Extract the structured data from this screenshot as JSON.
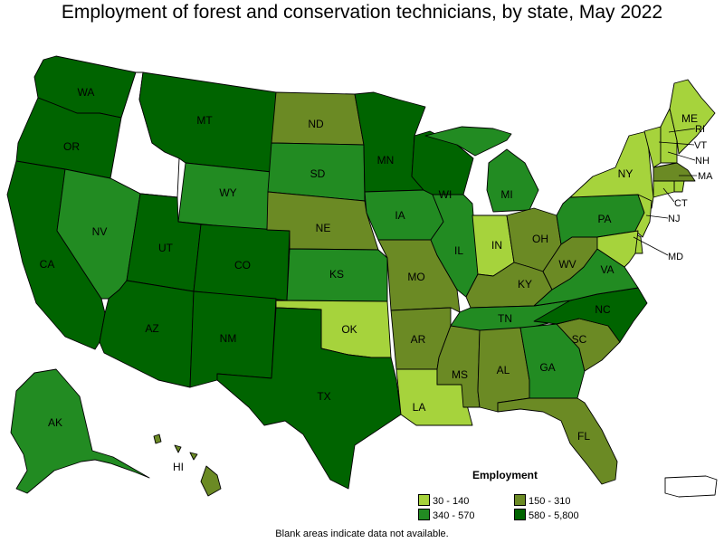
{
  "title": "Employment of forest and conservation technicians, by state, May 2022",
  "footnote": "Blank areas indicate data not available.",
  "legend": {
    "title": "Employment",
    "items": [
      {
        "label": "30 - 140",
        "color": "#a6d33c"
      },
      {
        "label": "150 - 310",
        "color": "#6b8a24"
      },
      {
        "label": "340 - 570",
        "color": "#228b22"
      },
      {
        "label": "580 - 5,800",
        "color": "#006400"
      }
    ]
  },
  "colors": {
    "c1": "#a6d33c",
    "c2": "#6b8a24",
    "c3": "#228b22",
    "c4": "#006400",
    "na": "#ffffff"
  },
  "states": {
    "WA": {
      "label": "WA",
      "bin": "c4"
    },
    "OR": {
      "label": "OR",
      "bin": "c4"
    },
    "CA": {
      "label": "CA",
      "bin": "c4"
    },
    "ID": {
      "label": "",
      "bin": "na"
    },
    "NV": {
      "label": "NV",
      "bin": "c3"
    },
    "MT": {
      "label": "MT",
      "bin": "c4"
    },
    "WY": {
      "label": "WY",
      "bin": "c3"
    },
    "UT": {
      "label": "UT",
      "bin": "c4"
    },
    "CO": {
      "label": "CO",
      "bin": "c4"
    },
    "AZ": {
      "label": "AZ",
      "bin": "c4"
    },
    "NM": {
      "label": "NM",
      "bin": "c4"
    },
    "ND": {
      "label": "ND",
      "bin": "c2"
    },
    "SD": {
      "label": "SD",
      "bin": "c3"
    },
    "NE": {
      "label": "NE",
      "bin": "c2"
    },
    "KS": {
      "label": "KS",
      "bin": "c3"
    },
    "OK": {
      "label": "OK",
      "bin": "c1"
    },
    "TX": {
      "label": "TX",
      "bin": "c4"
    },
    "MN": {
      "label": "MN",
      "bin": "c4"
    },
    "IA": {
      "label": "IA",
      "bin": "c3"
    },
    "MO": {
      "label": "MO",
      "bin": "c2"
    },
    "AR": {
      "label": "AR",
      "bin": "c2"
    },
    "LA": {
      "label": "LA",
      "bin": "c1"
    },
    "WI": {
      "label": "WI",
      "bin": "c4"
    },
    "IL": {
      "label": "IL",
      "bin": "c3"
    },
    "MI": {
      "label": "MI",
      "bin": "c3"
    },
    "IN": {
      "label": "IN",
      "bin": "c1"
    },
    "OH": {
      "label": "OH",
      "bin": "c2"
    },
    "KY": {
      "label": "KY",
      "bin": "c2"
    },
    "TN": {
      "label": "TN",
      "bin": "c3"
    },
    "MS": {
      "label": "MS",
      "bin": "c2"
    },
    "AL": {
      "label": "AL",
      "bin": "c2"
    },
    "GA": {
      "label": "GA",
      "bin": "c3"
    },
    "FL": {
      "label": "FL",
      "bin": "c2"
    },
    "SC": {
      "label": "SC",
      "bin": "c2"
    },
    "NC": {
      "label": "NC",
      "bin": "c4"
    },
    "VA": {
      "label": "VA",
      "bin": "c3"
    },
    "WV": {
      "label": "WV",
      "bin": "c2"
    },
    "PA": {
      "label": "PA",
      "bin": "c3"
    },
    "NY": {
      "label": "NY",
      "bin": "c1"
    },
    "VT": {
      "label": "VT",
      "bin": "c1"
    },
    "NH": {
      "label": "NH",
      "bin": "c1"
    },
    "ME": {
      "label": "ME",
      "bin": "c1"
    },
    "MA": {
      "label": "MA",
      "bin": "c2"
    },
    "RI": {
      "label": "RI",
      "bin": "c1"
    },
    "CT": {
      "label": "CT",
      "bin": "c1"
    },
    "NJ": {
      "label": "NJ",
      "bin": "c1"
    },
    "DE": {
      "label": "",
      "bin": "c1"
    },
    "MD": {
      "label": "MD",
      "bin": "c1"
    },
    "AK": {
      "label": "AK",
      "bin": "c3"
    },
    "HI": {
      "label": "HI",
      "bin": "c2"
    },
    "PR": {
      "label": "",
      "bin": "na"
    }
  }
}
